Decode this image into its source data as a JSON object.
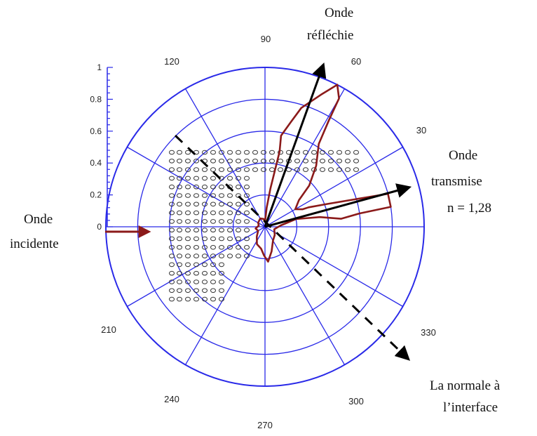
{
  "chart_data": {
    "type": "polar",
    "angular_ticks_deg": [
      30,
      60,
      90,
      120,
      210,
      240,
      270,
      300,
      330
    ],
    "radial_ticks": [
      "0",
      "0.2",
      "0.4",
      "0.6",
      "0.8",
      "1"
    ],
    "rlim": [
      0,
      1
    ],
    "series": [
      {
        "points": [
          [
            90,
            0.03
          ],
          [
            85,
            0.12
          ],
          [
            82,
            0.24
          ],
          [
            80,
            0.36
          ],
          [
            79,
            0.48
          ],
          [
            80,
            0.58
          ],
          [
            76,
            0.68
          ],
          [
            73,
            0.78
          ],
          [
            67,
            0.9
          ],
          [
            63,
            1.0
          ],
          [
            60,
            0.93
          ],
          [
            59,
            0.78
          ],
          [
            57,
            0.62
          ],
          [
            50,
            0.5
          ],
          [
            43,
            0.38
          ],
          [
            38,
            0.27
          ],
          [
            30,
            0.22
          ],
          [
            25,
            0.26
          ],
          [
            24,
            0.3
          ],
          [
            20,
            0.42
          ],
          [
            15,
            0.8
          ],
          [
            9,
            0.8
          ],
          [
            8,
            0.6
          ],
          [
            6,
            0.48
          ],
          [
            10,
            0.35
          ],
          [
            14,
            0.2
          ],
          [
            5,
            0.1
          ],
          [
            345,
            0.06
          ],
          [
            320,
            0.08
          ],
          [
            300,
            0.1
          ],
          [
            285,
            0.16
          ],
          [
            275,
            0.22
          ],
          [
            268,
            0.18
          ],
          [
            260,
            0.14
          ],
          [
            245,
            0.12
          ],
          [
            230,
            0.08
          ],
          [
            210,
            0.05
          ],
          [
            190,
            0.06
          ],
          [
            170,
            0.04
          ],
          [
            150,
            0.05
          ],
          [
            120,
            0.06
          ],
          [
            100,
            0.05
          ],
          [
            90,
            0.03
          ]
        ]
      }
    ],
    "grid": true
  },
  "annotations": {
    "reflected": [
      "Onde",
      "réfléchie"
    ],
    "transmitted": [
      "Onde",
      "transmise",
      "n = 1,28"
    ],
    "incident": [
      "Onde",
      "incidente"
    ],
    "normal": [
      "La normale à",
      "l’interface"
    ]
  },
  "colors": {
    "grid": "#2a2ae8",
    "pattern": "#8b1a1a",
    "arrow": "#000000"
  }
}
